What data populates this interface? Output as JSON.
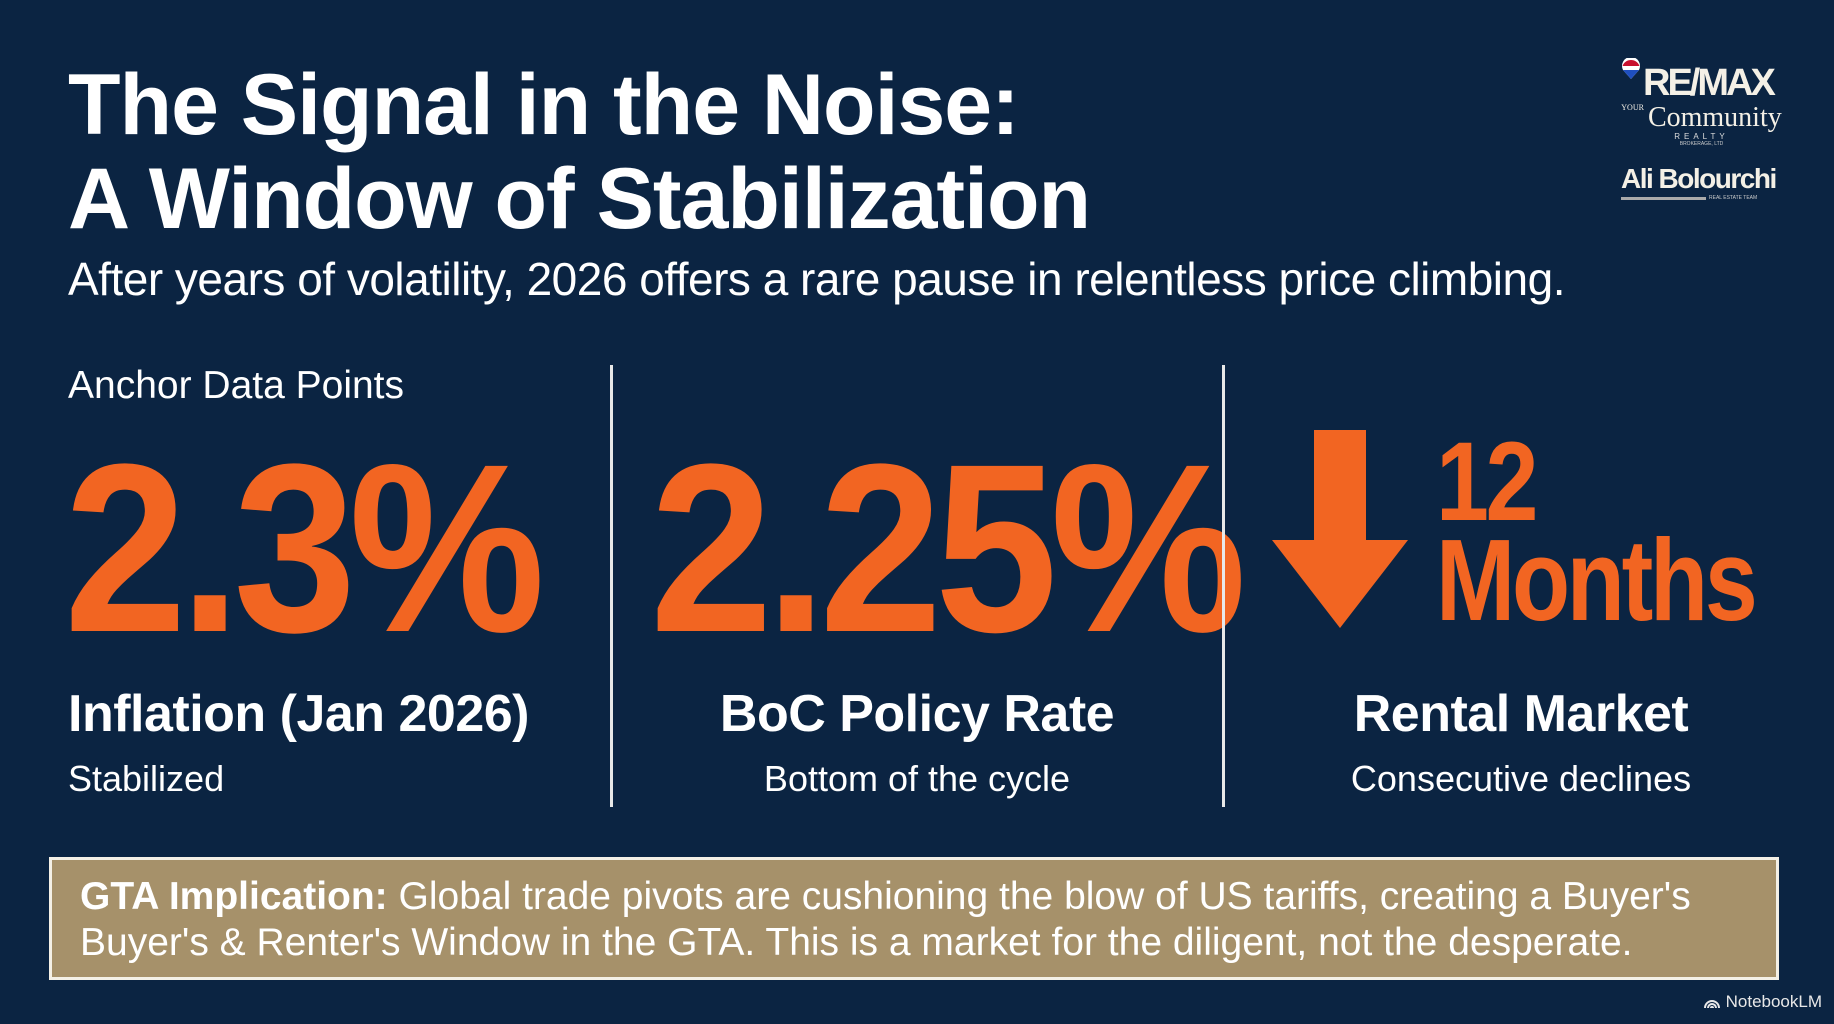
{
  "header": {
    "title_line1": "The Signal in the Noise:",
    "title_line2": "A Window of Stabilization",
    "subtitle": "After years of volatility, 2026 offers a rare pause in relentless price climbing."
  },
  "logos": {
    "remax": "RE/MAX",
    "your": "YOUR",
    "community": "Community",
    "realty": "REALTY",
    "brokerage": "BROKERAGE, LTD",
    "team_name": "Ali Bolourchi",
    "team_tag": "REAL ESTATE TEAM"
  },
  "section_label": "Anchor Data Points",
  "stats": [
    {
      "value": "2.3%",
      "label": "Inflation (Jan 2026)",
      "note": "Stabilized"
    },
    {
      "value": "2.25%",
      "label": "BoC Policy Rate",
      "note": "Bottom of the cycle"
    },
    {
      "value_num": "12",
      "value_unit": "Months",
      "icon": "arrow-down-icon",
      "label": "Rental Market",
      "note": "Consecutive declines"
    }
  ],
  "implication": {
    "lead": "GTA Implication:",
    "text": " Global trade pivots are cushioning the blow of US tariffs, creating a Buyer's Buyer's & Renter's Window in the GTA. This is a market for the diligent, not the desperate."
  },
  "watermark": "NotebookLM",
  "colors": {
    "background": "#0b2442",
    "accent": "#f26522",
    "box": "#a6916a"
  }
}
